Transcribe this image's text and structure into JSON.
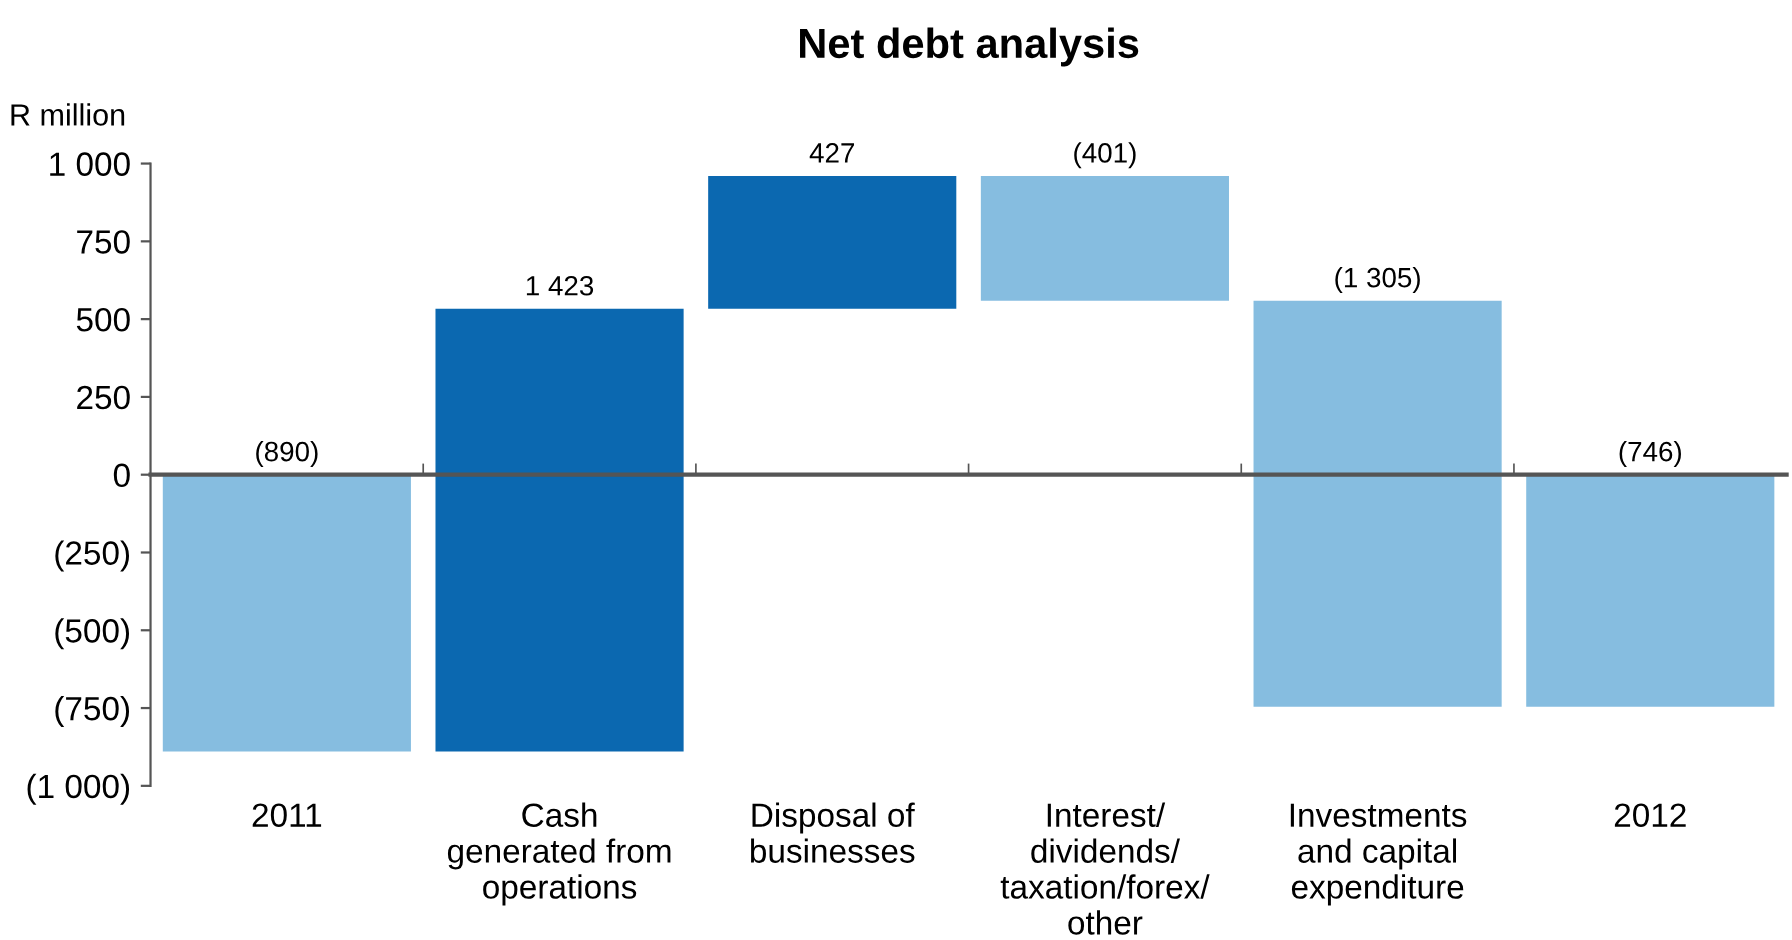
{
  "chart_data": {
    "type": "bar",
    "title": "Net debt analysis",
    "ylabel": "R million",
    "categories": [
      "2011",
      "Cash\ngenerated from\noperations",
      "Disposal of\nbusinesses",
      "Interest/\ndividends/\ntaxation/forex/\nother",
      "Investments\nand capital\nexpenditure",
      "2012"
    ],
    "values": [
      -890,
      1423,
      427,
      -401,
      -1305,
      -746
    ],
    "base": [
      0,
      -890,
      533,
      960,
      559,
      0
    ],
    "colors": [
      "#86bde0",
      "#0b68b0",
      "#0b68b0",
      "#86bde0",
      "#86bde0",
      "#86bde0"
    ],
    "value_labels": [
      "(890)",
      "1 423",
      "427",
      "(401)",
      "(1 305)",
      "(746)"
    ],
    "ylim": [
      -1000,
      1000
    ],
    "yticks": [
      {
        "value": -1000,
        "label": "(1 000)"
      },
      {
        "value": -750,
        "label": "(750)"
      },
      {
        "value": -500,
        "label": "(500)"
      },
      {
        "value": -250,
        "label": "(250)"
      },
      0,
      250,
      500,
      750,
      {
        "value": 1000,
        "label": "1 000"
      }
    ],
    "legend": false
  }
}
